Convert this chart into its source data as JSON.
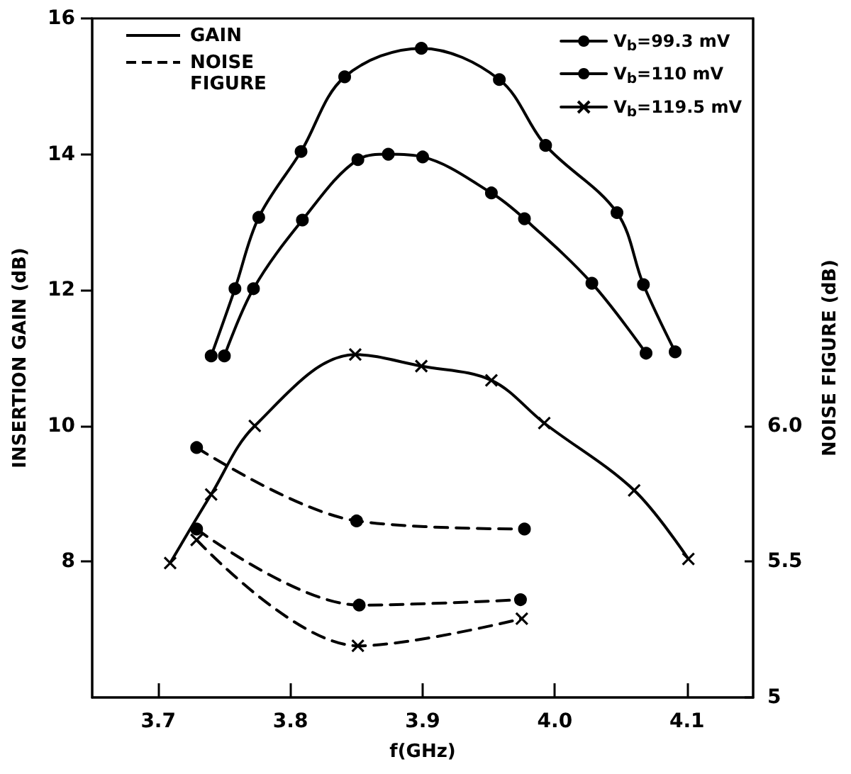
{
  "chart_data": {
    "type": "line",
    "xlabel": "f(GHz)",
    "ylabel": "INSERTION GAIN (dB)",
    "y2label": "NOISE FIGURE (dB)",
    "annotations": [
      "GAIN",
      "NOISE FIGURE"
    ],
    "xlim": [
      3.65,
      4.15
    ],
    "xticks": [
      3.7,
      3.8,
      {
        "value": 3.9,
        "label": "3.9"
      },
      {
        "value": 4.0,
        "label": "4.0"
      },
      4.1
    ],
    "ylim": [
      6,
      16
    ],
    "yticks": [
      8,
      10,
      12,
      14,
      16
    ],
    "y2lim": [
      5,
      7.5
    ],
    "y2ticks": [
      5,
      5.5,
      {
        "value": 6,
        "label": "6.0"
      }
    ],
    "grid": false,
    "legend": "top right",
    "series": [
      {
        "name": "V$_{b}$=99.3 mV",
        "color": "#000000",
        "marker": "circle",
        "line_style": "solid",
        "x": [
          3.74,
          3.758,
          3.776,
          3.808,
          3.841,
          3.899,
          3.958,
          3.993,
          4.047,
          4.067,
          4.091
        ],
        "values": [
          11.03,
          12.02,
          13.07,
          14.04,
          15.14,
          15.56,
          15.1,
          14.13,
          13.14,
          12.08,
          11.09
        ]
      },
      {
        "name": "V$_{b}$=110 mV",
        "color": "#000000",
        "marker": "circle",
        "line_style": "solid",
        "x": [
          3.75,
          3.772,
          3.809,
          3.851,
          3.874,
          3.9,
          3.952,
          3.977,
          4.028,
          4.069
        ],
        "values": [
          11.03,
          12.02,
          13.03,
          13.92,
          14.0,
          13.96,
          13.43,
          13.05,
          12.1,
          11.07
        ]
      },
      {
        "name": "V$_{b}$=119.5 mV",
        "color": "#000000",
        "marker": "cross",
        "line_style": "solid",
        "x": [
          3.709,
          3.74,
          3.773,
          3.849,
          3.899,
          3.952,
          3.992,
          4.06,
          4.101
        ],
        "values": [
          7.98,
          8.99,
          10.0,
          11.05,
          10.88,
          10.67,
          10.04,
          9.05,
          8.04
        ]
      },
      {
        "color": "#000000",
        "marker": "circle",
        "line_style": "dashed",
        "axis": "y2",
        "x": [
          3.729,
          3.85,
          3.977
        ],
        "values": [
          5.92,
          5.65,
          5.62
        ]
      },
      {
        "color": "#000000",
        "marker": "circle",
        "line_style": "dashed",
        "axis": "y2",
        "x": [
          3.729,
          3.852,
          3.974
        ],
        "values": [
          5.62,
          5.34,
          5.36
        ]
      },
      {
        "color": "#000000",
        "marker": "cross",
        "line_style": "dashed",
        "axis": "y2",
        "x": [
          3.729,
          3.851,
          3.975
        ],
        "values": [
          5.58,
          5.19,
          5.29
        ]
      }
    ]
  }
}
